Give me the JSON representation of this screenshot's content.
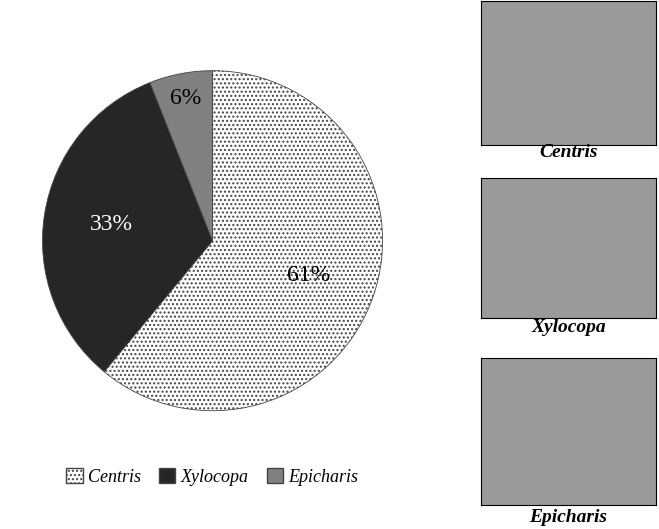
{
  "chart_data": {
    "type": "pie",
    "categories": [
      "Centris",
      "Xylocopa",
      "Epicharis"
    ],
    "values": [
      61,
      33,
      6
    ],
    "value_labels": [
      "61%",
      "33%",
      "6%"
    ],
    "colors": [
      "#ffffff",
      "#262626",
      "#808080"
    ],
    "data_labels": true,
    "legend": "lower center"
  }
}
